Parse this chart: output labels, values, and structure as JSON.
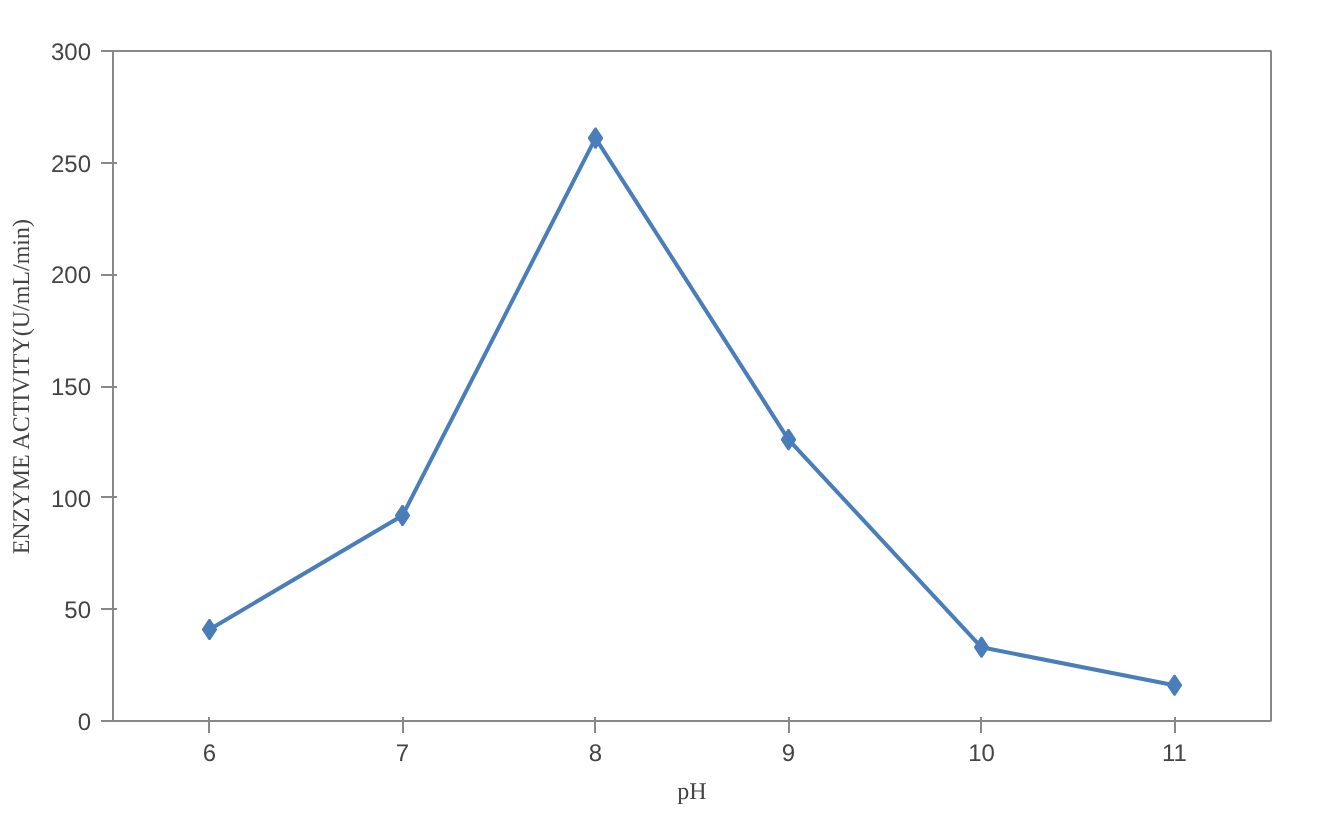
{
  "chart_data": {
    "type": "line",
    "xlabel": "pH",
    "ylabel": "ENZYME ACTIVITY(U/mL/min)",
    "categories": [
      "6",
      "7",
      "8",
      "9",
      "10",
      "11"
    ],
    "series": [
      {
        "color": "#4a7ebb",
        "values": [
          41,
          92,
          261,
          126,
          33,
          16
        ]
      }
    ],
    "ylim": [
      0,
      300
    ],
    "yticks": [
      0,
      50,
      100,
      150,
      200,
      250,
      300
    ],
    "grid": false,
    "marker": "diamond",
    "line_style": "solid"
  }
}
